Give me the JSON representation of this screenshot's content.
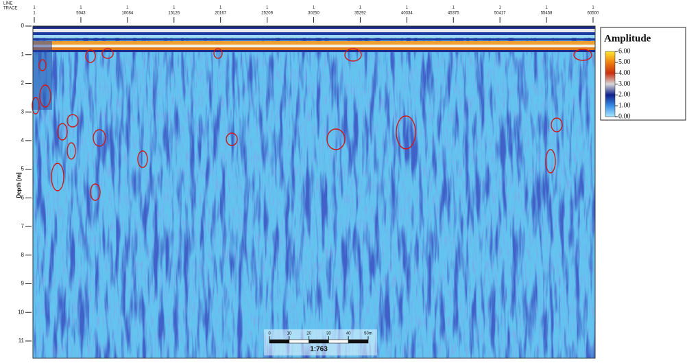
{
  "chart_data": {
    "type": "radargram",
    "line_axis_label": "LINE",
    "trace_axis_label": "TRACE",
    "line_number": "1",
    "xlim": [
      1,
      60500
    ],
    "xticks": [
      1,
      5043,
      10084,
      15126,
      20167,
      25209,
      30250,
      35292,
      40334,
      45375,
      50417,
      55458,
      60500
    ],
    "ylabel": "Depth [m]",
    "ylim": [
      0,
      11.6
    ],
    "yticks": [
      0,
      1,
      2,
      3,
      4,
      5,
      6,
      7,
      8,
      9,
      10,
      11
    ],
    "colorbar": {
      "title": "Amplitude",
      "ticks": [
        {
          "value": 6,
          "label": "6.00"
        },
        {
          "value": 5,
          "label": "5.00"
        },
        {
          "value": 4,
          "label": "4.00"
        },
        {
          "value": 3,
          "label": "3.00"
        },
        {
          "value": 2,
          "label": "2.00"
        },
        {
          "value": 1,
          "label": "1.00"
        },
        {
          "value": 0,
          "label": "0.00"
        }
      ],
      "colors": [
        "#a6e4ff",
        "#3a8ee8",
        "#10208a",
        "#d8d8d8",
        "#c83010",
        "#f08010",
        "#ffe830"
      ]
    },
    "scale_bar": {
      "ticks": [
        0,
        10,
        20,
        30,
        40,
        {
          "value": 50,
          "label": "50m"
        }
      ],
      "label": "1:763"
    }
  }
}
